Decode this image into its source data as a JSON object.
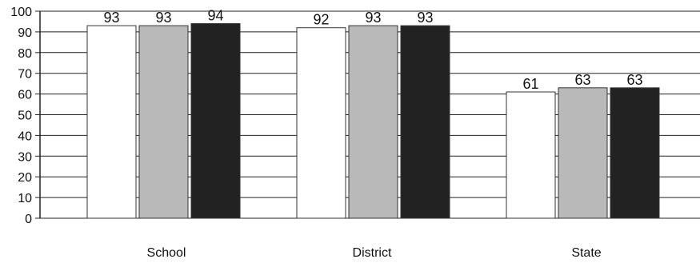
{
  "chart_data": {
    "type": "bar",
    "title": "",
    "xlabel": "",
    "ylabel": "",
    "categories": [
      "School",
      "District",
      "State"
    ],
    "ylim": [
      0,
      100
    ],
    "yticks": [
      0,
      10,
      20,
      30,
      40,
      50,
      60,
      70,
      80,
      90,
      100
    ],
    "grid": true,
    "legend": "none",
    "series": [
      {
        "values": [
          93,
          92,
          61
        ],
        "color": "#ffffff"
      },
      {
        "values": [
          93,
          93,
          63
        ],
        "color": "#b9b9b9"
      },
      {
        "values": [
          94,
          93,
          63
        ],
        "color": "#222222"
      }
    ]
  }
}
